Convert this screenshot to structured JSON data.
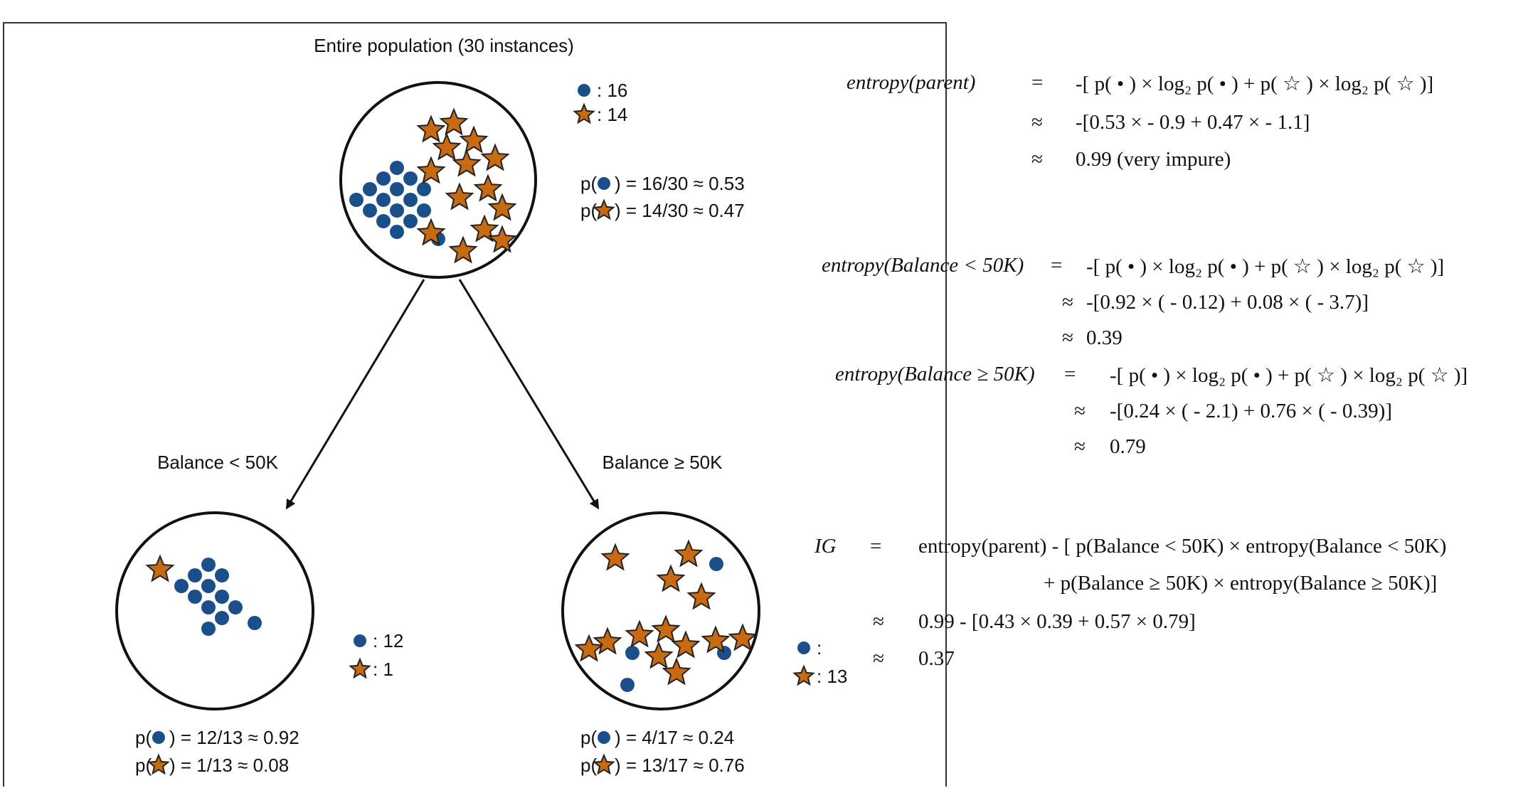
{
  "colors": {
    "dot": "#1b4f8c",
    "star": "#c86a12",
    "star_stroke": "#222222",
    "line": "#111111"
  },
  "tree": {
    "root": {
      "title": "Entire population (30 instances)",
      "dot_count": ": 16",
      "star_count": ": 14",
      "p_dot_prefix": "p(",
      "p_dot_value": ") = 16/30 ≈ 0.53",
      "p_star_prefix": "p(",
      "p_star_value": ") = 14/30 ≈ 0.47",
      "dots": 16,
      "stars": 14
    },
    "left": {
      "title": "Balance < 50K",
      "dot_count": ": 12",
      "star_count": ": 1",
      "p_dot_prefix": "p(",
      "p_dot_value": ") = 12/13 ≈ 0.92",
      "p_star_prefix": "p(",
      "p_star_value": ") = 1/13 ≈ 0.08",
      "dots": 12,
      "stars": 1
    },
    "right": {
      "title": "Balance ≥ 50K",
      "dot_count": ":",
      "star_count": ": 13",
      "p_dot_prefix": "p(",
      "p_dot_value": ") = 4/17 ≈ 0.24",
      "p_star_prefix": "p(",
      "p_star_value": ") = 13/17 ≈ 0.76",
      "dots": 4,
      "stars": 13
    }
  },
  "equations": {
    "parent": {
      "lhs": "entropy(parent)",
      "eq": "=",
      "line1": "-[ p( • ) × log₂  p( • ) + p( ☆ ) × log₂  p( ☆ )]",
      "approx": "≈",
      "line2": "-[0.53 ×  - 0.9 + 0.47 ×  - 1.1]",
      "line3": "0.99   (very impure)"
    },
    "left": {
      "lhs": "entropy(Balance < 50K)",
      "eq": "=",
      "line1": "-[ p( • ) × log₂  p( • ) + p( ☆ ) × log₂  p( ☆ )]",
      "approx": "≈",
      "line2": "-[0.92 × ( - 0.12) + 0.08 × ( - 3.7)]",
      "line3": "0.39"
    },
    "right": {
      "lhs": "entropy(Balance ≥ 50K)",
      "eq": "=",
      "line1": "-[ p( • ) × log₂  p( • ) + p( ☆ ) × log₂  p( ☆ )]",
      "approx": "≈",
      "line2": "-[0.24 × ( - 2.1) + 0.76 × ( - 0.39)]",
      "line3": "0.79"
    },
    "ig": {
      "lhs": "IG",
      "eq": "=",
      "line1": "entropy(parent) - [ p(Balance < 50K) × entropy(Balance < 50K)",
      "line2": "+ p(Balance ≥ 50K) × entropy(Balance ≥ 50K)]",
      "approx": "≈",
      "line3": "0.99 - [0.43 × 0.39 + 0.57 × 0.79]",
      "line4": "0.37"
    }
  }
}
